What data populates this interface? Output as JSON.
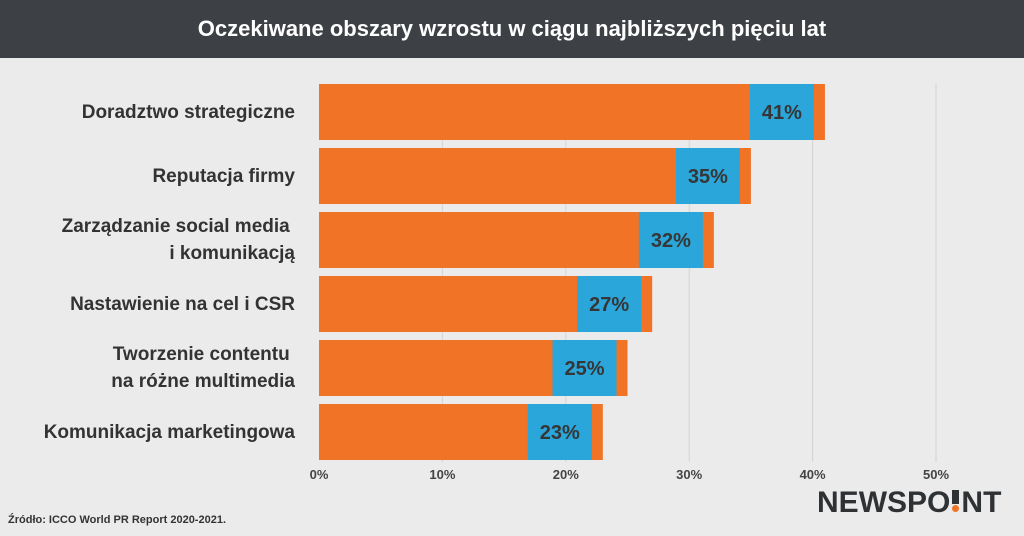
{
  "chart_data": {
    "type": "bar",
    "orientation": "horizontal",
    "title": "Oczekiwane obszary wzrostu w ciągu najbliższych pięciu lat",
    "categories": [
      "Doradztwo strategiczne",
      "Reputacja firmy",
      "Zarządzanie social media \ni komunikacją",
      "Nastawienie na cel i CSR",
      "Tworzenie contentu \nna różne multimedia",
      "Komunikacja marketingowa"
    ],
    "values": [
      41,
      35,
      32,
      27,
      25,
      23
    ],
    "data_labels": [
      "41%",
      "35%",
      "32%",
      "27%",
      "25%",
      "23%"
    ],
    "x_ticks": [
      0,
      10,
      20,
      30,
      40,
      50
    ],
    "x_tick_labels": [
      "0%",
      "10%",
      "20%",
      "30%",
      "40%",
      "50%"
    ],
    "xlim": [
      0,
      50
    ],
    "grid": "vertical",
    "legend": "none",
    "colors": {
      "bar": "#f07326",
      "data_label_box": "#2aa6da",
      "title_bar": "#3d4145",
      "background": "#ebebeb"
    }
  },
  "footer": {
    "source": "Źródło: ICCO World PR Report 2020-2021."
  },
  "logo": {
    "text": "NEWSPO!NT",
    "accent_color": "#f07326"
  }
}
